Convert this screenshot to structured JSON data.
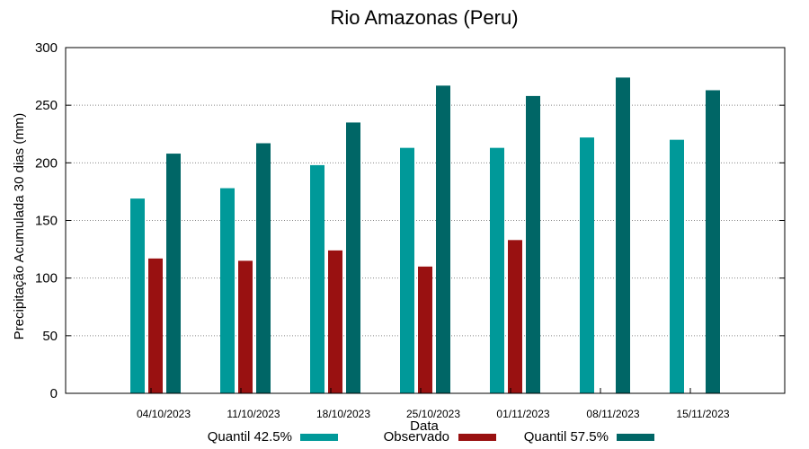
{
  "chart_data": {
    "type": "bar",
    "title": "Rio Amazonas (Peru)",
    "xlabel": "Data",
    "ylabel": "Precipitação Acumulada 30 dias (mm)",
    "ylim": [
      0,
      300
    ],
    "yticks": [
      0,
      50,
      100,
      150,
      200,
      250,
      300
    ],
    "grid": true,
    "legend_position": "bottom",
    "categories": [
      "04/10/2023",
      "11/10/2023",
      "18/10/2023",
      "25/10/2023",
      "01/11/2023",
      "08/11/2023",
      "15/11/2023"
    ],
    "series": [
      {
        "name": "Quantil 42.5%",
        "color": "#009999",
        "values": [
          169,
          178,
          198,
          213,
          213,
          222,
          220
        ]
      },
      {
        "name": "Observado",
        "color": "#991111",
        "values": [
          117,
          115,
          124,
          110,
          133,
          null,
          null
        ]
      },
      {
        "name": "Quantil 57.5%",
        "color": "#006666",
        "values": [
          208,
          217,
          235,
          267,
          258,
          274,
          263
        ]
      }
    ]
  }
}
